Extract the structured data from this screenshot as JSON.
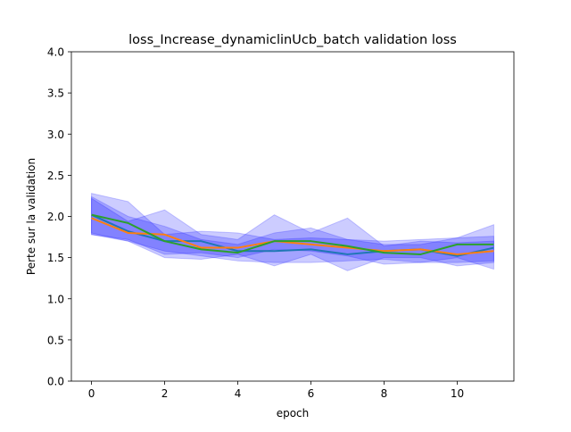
{
  "chart_data": {
    "type": "line",
    "title": "loss_Increase_dynamiclinUcb_batch validation loss",
    "xlabel": "epoch",
    "ylabel": "Perte sur la validation",
    "xlim": [
      -0.55,
      11.55
    ],
    "ylim": [
      0,
      4.0
    ],
    "xticks": [
      0,
      2,
      4,
      6,
      8,
      10
    ],
    "yticks": [
      0.0,
      0.5,
      1.0,
      1.5,
      2.0,
      2.5,
      3.0,
      3.5,
      4.0
    ],
    "grid": false,
    "legend": "none",
    "x": [
      0,
      1,
      2,
      3,
      4,
      5,
      6,
      7,
      8,
      9,
      10,
      11
    ],
    "bands": [
      {
        "color": "#0000ff",
        "opacity": 0.2,
        "upper": [
          2.28,
          2.18,
          1.78,
          1.82,
          1.8,
          1.72,
          1.74,
          1.72,
          1.7,
          1.72,
          1.74,
          1.76
        ],
        "lower": [
          1.78,
          1.7,
          1.58,
          1.52,
          1.46,
          1.44,
          1.44,
          1.46,
          1.48,
          1.44,
          1.44,
          1.46
        ]
      },
      {
        "color": "#0000ff",
        "opacity": 0.2,
        "upper": [
          2.22,
          1.94,
          2.08,
          1.78,
          1.72,
          2.02,
          1.8,
          1.98,
          1.64,
          1.7,
          1.68,
          1.7
        ],
        "lower": [
          1.8,
          1.7,
          1.5,
          1.48,
          1.54,
          1.4,
          1.54,
          1.34,
          1.5,
          1.5,
          1.4,
          1.44
        ]
      },
      {
        "color": "#0000ff",
        "opacity": 0.2,
        "upper": [
          2.24,
          2.0,
          1.88,
          1.72,
          1.66,
          1.8,
          1.86,
          1.72,
          1.66,
          1.66,
          1.74,
          1.9
        ],
        "lower": [
          1.78,
          1.72,
          1.54,
          1.56,
          1.5,
          1.6,
          1.58,
          1.52,
          1.42,
          1.44,
          1.5,
          1.36
        ]
      }
    ],
    "series": [
      {
        "color": "#1f77b4",
        "values": [
          2.02,
          1.82,
          1.7,
          1.7,
          1.58,
          1.58,
          1.6,
          1.54,
          1.58,
          1.6,
          1.52,
          1.62
        ]
      },
      {
        "color": "#ff7f0e",
        "values": [
          1.98,
          1.8,
          1.78,
          1.62,
          1.62,
          1.7,
          1.66,
          1.62,
          1.58,
          1.6,
          1.54,
          1.58
        ]
      },
      {
        "color": "#2ca02c",
        "values": [
          2.02,
          1.92,
          1.7,
          1.6,
          1.56,
          1.7,
          1.7,
          1.64,
          1.56,
          1.54,
          1.66,
          1.66
        ]
      }
    ]
  }
}
